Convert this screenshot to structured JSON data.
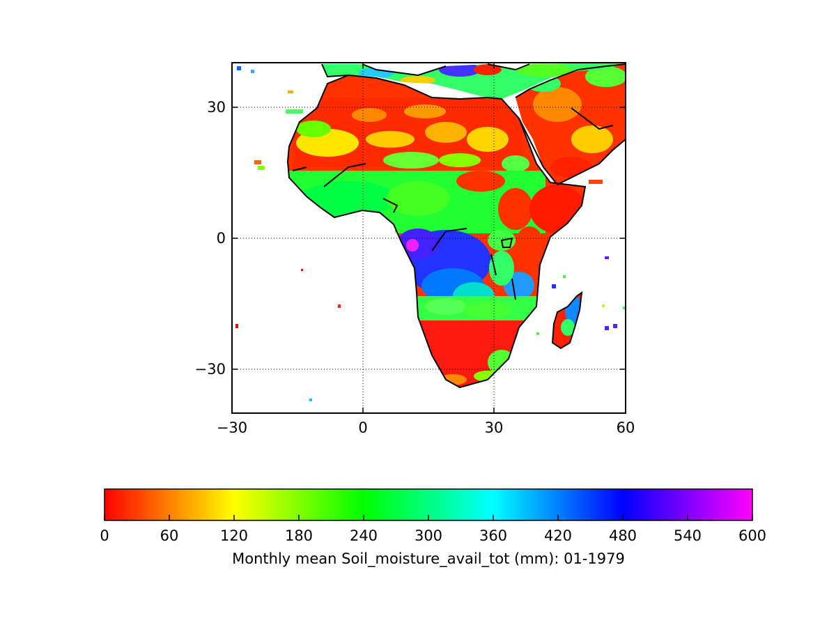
{
  "map": {
    "region": "Africa",
    "x_ticks": [
      "−30",
      "0",
      "30",
      "60"
    ],
    "y_ticks": [
      "30",
      "0",
      "−30"
    ],
    "lon_range": [
      -30,
      60
    ],
    "lat_range": [
      -40,
      40
    ],
    "gridlines": "dotted",
    "land_fill": "soil moisture field"
  },
  "colorbar": {
    "label": "Monthly mean Soil_moisture_avail_tot (mm): 01-1979",
    "ticks": [
      "0",
      "60",
      "120",
      "180",
      "240",
      "300",
      "360",
      "420",
      "480",
      "540",
      "600"
    ],
    "range": [
      0,
      600
    ],
    "colormap": [
      "#ff0000",
      "#ffff00",
      "#00ff00",
      "#00ffff",
      "#0000ff",
      "#ff00ff"
    ]
  }
}
